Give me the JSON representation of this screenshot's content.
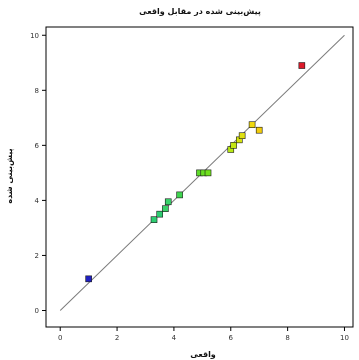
{
  "chart_data": {
    "type": "scatter",
    "title": "پیش‌بینی شده در مقابل واقعی",
    "xlabel": "واقعی",
    "ylabel": "پیش‌بینی شده",
    "xlim": [
      -0.5,
      10.3
    ],
    "ylim": [
      -0.6,
      10.3
    ],
    "xticks": [
      0,
      2,
      4,
      6,
      8,
      10
    ],
    "yticks": [
      0,
      2,
      4,
      6,
      8,
      10
    ],
    "xtick_labels": [
      "0",
      "2",
      "4",
      "6",
      "8",
      "10"
    ],
    "ytick_labels": [
      "0",
      "2",
      "4",
      "6",
      "8",
      "10"
    ],
    "grid": false,
    "reference_line": {
      "from": [
        0,
        0
      ],
      "to": [
        10,
        10
      ],
      "color": "#7a7a7a"
    },
    "points": [
      {
        "x": 1.0,
        "y": 1.15,
        "color": "#2020c0"
      },
      {
        "x": 3.3,
        "y": 3.3,
        "color": "#2ecc71"
      },
      {
        "x": 3.5,
        "y": 3.5,
        "color": "#2ecc71"
      },
      {
        "x": 3.7,
        "y": 3.7,
        "color": "#3ad16a"
      },
      {
        "x": 3.8,
        "y": 3.95,
        "color": "#3ad16a"
      },
      {
        "x": 4.2,
        "y": 4.2,
        "color": "#3fd44f"
      },
      {
        "x": 4.9,
        "y": 5.0,
        "color": "#5fdc2a"
      },
      {
        "x": 5.05,
        "y": 5.0,
        "color": "#66dd22"
      },
      {
        "x": 5.2,
        "y": 5.0,
        "color": "#70e01c"
      },
      {
        "x": 6.0,
        "y": 5.85,
        "color": "#b8e814"
      },
      {
        "x": 6.1,
        "y": 6.0,
        "color": "#c4e612"
      },
      {
        "x": 6.3,
        "y": 6.2,
        "color": "#d6e410"
      },
      {
        "x": 6.4,
        "y": 6.35,
        "color": "#dfe010"
      },
      {
        "x": 6.75,
        "y": 6.75,
        "color": "#f0d90e"
      },
      {
        "x": 7.0,
        "y": 6.55,
        "color": "#f2cc0c"
      },
      {
        "x": 8.5,
        "y": 8.9,
        "color": "#dd1a2a"
      }
    ]
  }
}
